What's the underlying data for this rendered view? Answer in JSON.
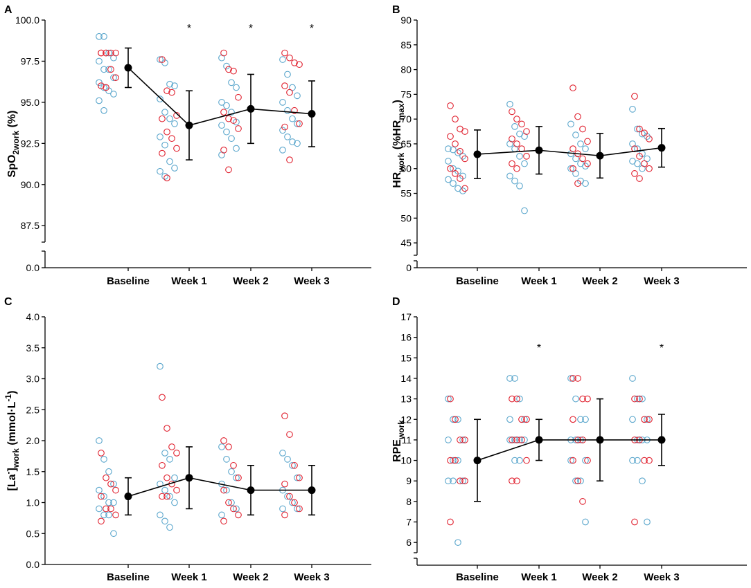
{
  "colors": {
    "blue": "#5aa6cc",
    "red": "#e0202e",
    "mean": "#000000"
  },
  "categories": [
    "Baseline",
    "Week 1",
    "Week 2",
    "Week 3"
  ],
  "chart_data": [
    {
      "letter": "A",
      "type": "scatter",
      "title": "",
      "xlabel": "",
      "ylabel_parts": [
        "SpO",
        "2work",
        " (%)"
      ],
      "categories": [
        "Baseline",
        "Week 1",
        "Week 2",
        "Week 3"
      ],
      "ylim": [
        86.5,
        100.0
      ],
      "yticks": [
        87.5,
        90.0,
        92.5,
        95.0,
        97.5,
        100.0
      ],
      "ytick_labels": [
        "87.5",
        "90.0",
        "92.5",
        "95.0",
        "97.5",
        "100.0"
      ],
      "broken_axis_label": "0.0",
      "mean": [
        97.1,
        93.6,
        94.6,
        94.3
      ],
      "err": [
        1.2,
        2.1,
        2.1,
        2.0
      ],
      "significance": [
        "",
        "*",
        "*",
        "*"
      ],
      "points": {
        "blue": [
          [
            99.0,
            99.0,
            98.0,
            97.7,
            97.5,
            97.0,
            97.0,
            96.5,
            96.2,
            95.9,
            95.7,
            95.5,
            95.1,
            94.5
          ],
          [
            97.6,
            97.4,
            96.1,
            96.0,
            95.2,
            94.4,
            94.0,
            93.7,
            92.9,
            92.4,
            91.4,
            91.0,
            90.8,
            90.5
          ],
          [
            97.7,
            97.2,
            96.2,
            95.9,
            95.0,
            94.8,
            94.4,
            93.8,
            93.6,
            93.2,
            92.8,
            92.2,
            91.8
          ],
          [
            97.6,
            96.7,
            95.9,
            95.4,
            95.0,
            94.5,
            94.0,
            93.7,
            93.3,
            92.9,
            92.6,
            92.5,
            92.1
          ]
        ],
        "red": [
          [
            98.0,
            98.0,
            98.0,
            98.0,
            98.0,
            98.0,
            97.0,
            96.5,
            96.0,
            95.9
          ],
          [
            97.6,
            95.7,
            95.6,
            94.2,
            94.0,
            93.2,
            92.8,
            92.2,
            91.9,
            90.4
          ],
          [
            98.0,
            97.0,
            96.9,
            95.3,
            94.4,
            94.0,
            93.9,
            93.4,
            92.1,
            90.9
          ],
          [
            98.0,
            97.7,
            97.4,
            97.3,
            96.0,
            95.6,
            94.5,
            93.7,
            93.5,
            91.5
          ]
        ]
      }
    },
    {
      "letter": "B",
      "type": "scatter",
      "title": "",
      "xlabel": "",
      "ylabel_parts": [
        "HR",
        "work",
        " (%HR",
        "max",
        ")"
      ],
      "categories": [
        "Baseline",
        "Week 1",
        "Week 2",
        "Week 3"
      ],
      "ylim": [
        42.5,
        90
      ],
      "yticks": [
        45,
        50,
        55,
        60,
        65,
        70,
        75,
        80,
        85,
        90
      ],
      "ytick_labels": [
        "45",
        "50",
        "55",
        "60",
        "65",
        "70",
        "75",
        "80",
        "85",
        "90"
      ],
      "broken_axis_label": "0",
      "mean": [
        62.9,
        63.7,
        62.6,
        64.2
      ],
      "err": [
        4.9,
        4.8,
        4.5,
        3.9
      ],
      "significance": [
        "",
        "",
        "",
        ""
      ],
      "points": {
        "blue": [
          [
            64.0,
            63.8,
            63.2,
            62.5,
            61.5,
            60.0,
            59.5,
            58.5,
            57.8,
            57.0,
            56.0,
            55.5
          ],
          [
            73.0,
            68.5,
            67.0,
            66.5,
            65.0,
            64.0,
            62.5,
            61.0,
            58.5,
            57.5,
            56.5,
            51.5
          ],
          [
            69.0,
            66.8,
            65.0,
            64.0,
            63.0,
            62.0,
            61.0,
            60.5,
            60.0,
            59.0,
            57.5,
            57.0
          ],
          [
            72.0,
            68.0,
            67.0,
            66.5,
            65.0,
            64.0,
            63.0,
            62.0,
            61.5,
            61.0,
            60.0
          ]
        ],
        "red": [
          [
            72.7,
            70.0,
            68.0,
            67.5,
            66.5,
            65.0,
            63.5,
            62.0,
            60.0,
            59.0,
            58.0,
            56.0
          ],
          [
            71.5,
            70.0,
            69.0,
            67.5,
            66.0,
            65.0,
            64.0,
            62.5,
            61.0,
            60.0
          ],
          [
            76.3,
            70.5,
            68.0,
            65.5,
            64.0,
            63.0,
            62.0,
            61.0,
            60.0,
            57.0
          ],
          [
            74.6,
            68.0,
            67.2,
            66.0,
            64.0,
            62.5,
            61.0,
            60.0,
            59.0,
            58.0
          ]
        ]
      }
    },
    {
      "letter": "C",
      "type": "scatter",
      "title": "",
      "xlabel": "",
      "ylabel_parts": [
        "[La",
        "-",
        "]",
        "work",
        " (mmol·L",
        "-1",
        ")"
      ],
      "categories": [
        "Baseline",
        "Week 1",
        "Week 2",
        "Week 3"
      ],
      "ylim": [
        0.0,
        4.0
      ],
      "yticks": [
        0.0,
        0.5,
        1.0,
        1.5,
        2.0,
        2.5,
        3.0,
        3.5,
        4.0
      ],
      "ytick_labels": [
        "0.0",
        "0.5",
        "1.0",
        "1.5",
        "2.0",
        "2.5",
        "3.0",
        "3.5",
        "4.0"
      ],
      "broken_axis_label": "",
      "mean": [
        1.1,
        1.4,
        1.2,
        1.2
      ],
      "err": [
        0.3,
        0.5,
        0.4,
        0.4
      ],
      "significance": [
        "",
        "",
        "",
        ""
      ],
      "points": {
        "blue": [
          [
            2.0,
            1.7,
            1.5,
            1.3,
            1.2,
            1.1,
            1.0,
            1.0,
            0.9,
            0.8,
            0.8,
            0.5
          ],
          [
            3.2,
            1.8,
            1.7,
            1.4,
            1.3,
            1.2,
            1.1,
            1.0,
            0.8,
            0.7,
            0.6
          ],
          [
            1.9,
            1.7,
            1.5,
            1.4,
            1.3,
            1.2,
            1.0,
            0.9,
            0.8
          ],
          [
            1.8,
            1.7,
            1.6,
            1.4,
            1.2,
            1.1,
            1.0,
            0.9,
            0.9
          ]
        ],
        "red": [
          [
            1.8,
            1.4,
            1.3,
            1.2,
            1.1,
            0.9,
            0.9,
            0.8,
            0.7
          ],
          [
            2.7,
            2.2,
            1.9,
            1.8,
            1.6,
            1.4,
            1.3,
            1.2,
            1.1,
            1.1
          ],
          [
            2.0,
            1.9,
            1.6,
            1.4,
            1.2,
            1.0,
            0.9,
            0.8,
            0.7
          ],
          [
            2.4,
            2.1,
            1.6,
            1.4,
            1.3,
            1.1,
            1.0,
            0.9,
            0.8
          ]
        ]
      }
    },
    {
      "letter": "D",
      "type": "scatter",
      "title": "",
      "xlabel": "",
      "ylabel_parts": [
        "RPE",
        "work"
      ],
      "categories": [
        "Baseline",
        "Week 1",
        "Week 2",
        "Week 3"
      ],
      "ylim": [
        5.5,
        17
      ],
      "yticks": [
        6,
        7,
        8,
        9,
        10,
        11,
        12,
        13,
        14,
        15,
        16,
        17
      ],
      "ytick_labels": [
        "6",
        "7",
        "8",
        "9",
        "10",
        "11",
        "12",
        "13",
        "14",
        "15",
        "16",
        "17"
      ],
      "broken_axis_label": "",
      "mean": [
        10.0,
        11.0,
        11.0,
        11.0
      ],
      "err": [
        2.0,
        1.0,
        2.0,
        1.25
      ],
      "significance": [
        "",
        "*",
        "",
        "*"
      ],
      "points": {
        "blue": [
          [
            13,
            12,
            12,
            11,
            11,
            10,
            10,
            9,
            9,
            9,
            6
          ],
          [
            14,
            14,
            13,
            12,
            12,
            11,
            11,
            11,
            11,
            10,
            10
          ],
          [
            14,
            13,
            12,
            12,
            11,
            11,
            11,
            10,
            10,
            9,
            9,
            7
          ],
          [
            14,
            13,
            13,
            12,
            12,
            11,
            11,
            11,
            10,
            10,
            9,
            7
          ]
        ],
        "red": [
          [
            13,
            12,
            11,
            11,
            10,
            10,
            9,
            9,
            7
          ],
          [
            13,
            13,
            12,
            12,
            11,
            11,
            11,
            10,
            9,
            9
          ],
          [
            14,
            14,
            13,
            13,
            12,
            11,
            11,
            10,
            10,
            9,
            8
          ],
          [
            13,
            13,
            12,
            12,
            11,
            11,
            10,
            10,
            7
          ]
        ]
      }
    }
  ]
}
